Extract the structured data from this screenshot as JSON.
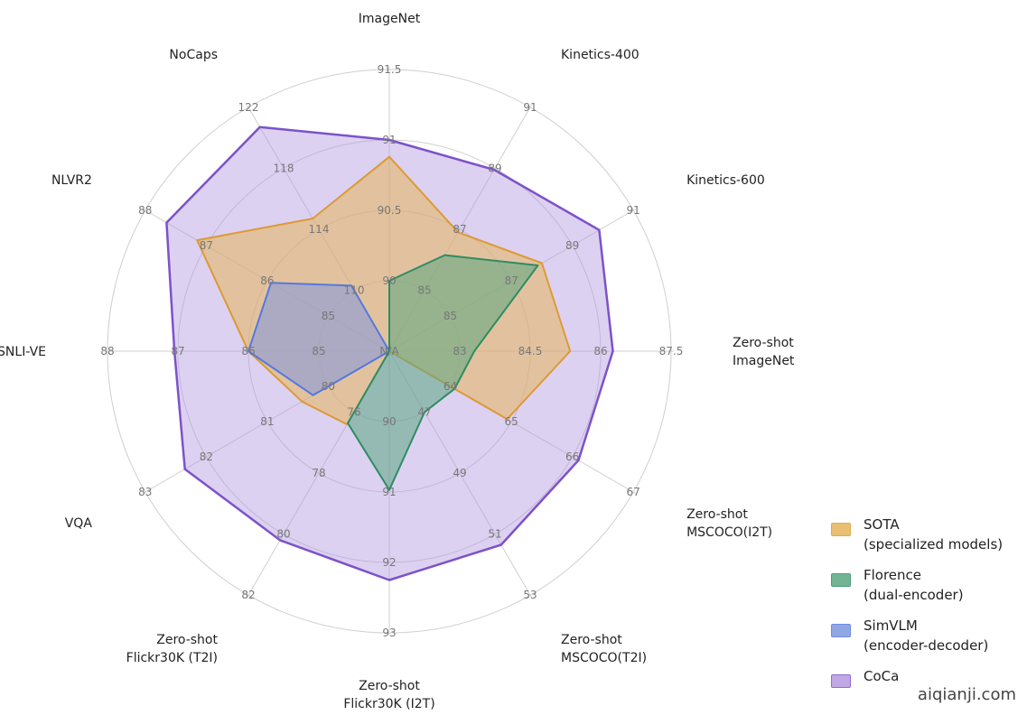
{
  "chart_data": {
    "type": "radar",
    "grid": true,
    "legend_position": "bottom-right",
    "axes": [
      {
        "name": [
          "ImageNet"
        ],
        "ticks": [
          "90",
          "90.5",
          "91",
          "91.5"
        ]
      },
      {
        "name": [
          "Kinetics-400"
        ],
        "ticks": [
          "85",
          "87",
          "89",
          "91"
        ]
      },
      {
        "name": [
          "Kinetics-600"
        ],
        "ticks": [
          "85",
          "87",
          "89",
          "91"
        ]
      },
      {
        "name": [
          "Zero-shot",
          "ImageNet"
        ],
        "ticks": [
          "83",
          "84.5",
          "86",
          "87.5"
        ]
      },
      {
        "name": [
          "Zero-shot",
          "MSCOCO(I2T)"
        ],
        "ticks": [
          "64",
          "65",
          "66",
          "67"
        ]
      },
      {
        "name": [
          "Zero-shot",
          "MSCOCO(T2I)"
        ],
        "ticks": [
          "47",
          "49",
          "51",
          "53"
        ]
      },
      {
        "name": [
          "Zero-shot",
          "Flickr30K (I2T)"
        ],
        "ticks": [
          "90",
          "91",
          "92",
          "93"
        ]
      },
      {
        "name": [
          "Zero-shot",
          "Flickr30K (T2I)"
        ],
        "ticks": [
          "76",
          "78",
          "80",
          "82"
        ]
      },
      {
        "name": [
          "VQA"
        ],
        "ticks": [
          "80",
          "81",
          "82",
          "83"
        ]
      },
      {
        "name": [
          "SNLI-VE"
        ],
        "ticks": [
          "85",
          "86",
          "87",
          "88"
        ]
      },
      {
        "name": [
          "NLVR2"
        ],
        "ticks": [
          "85",
          "86",
          "87",
          "88"
        ]
      },
      {
        "name": [
          "NoCaps"
        ],
        "ticks": [
          "110",
          "114",
          "118",
          "122"
        ]
      }
    ],
    "center_label": "N/A",
    "series": [
      {
        "name": [
          "SOTA",
          "(specialized models)"
        ],
        "fill": "#e6b65a",
        "stroke": "#dc9a35",
        "values": [
          90.88,
          86.9,
          88.0,
          85.35,
          64.93,
          null,
          null,
          76.4,
          80.43,
          86.0,
          87.15,
          114.7
        ]
      },
      {
        "name": [
          "Florence",
          "(dual-encoder)"
        ],
        "fill": "#5aa882",
        "stroke": "#2e8c63",
        "values": [
          90.0,
          86.15,
          87.87,
          83.31,
          64.07,
          47.0,
          90.97,
          76.36,
          null,
          null,
          null,
          null
        ]
      },
      {
        "name": [
          "SimVLM",
          "(encoder-decoder)"
        ],
        "fill": "#7e98e0",
        "stroke": "#5579dc",
        "values": [
          null,
          null,
          null,
          null,
          null,
          null,
          null,
          null,
          80.25,
          86.0,
          85.94,
          110.3
        ]
      },
      {
        "name": [
          "CoCa"
        ],
        "fill": "#b49ae0",
        "stroke": "#7d52c9",
        "values": [
          91.0,
          88.95,
          89.88,
          86.26,
          66.1,
          51.35,
          92.25,
          80.2,
          82.35,
          87.05,
          87.65,
          120.7
        ]
      }
    ]
  },
  "watermark": "aiqianji.com"
}
